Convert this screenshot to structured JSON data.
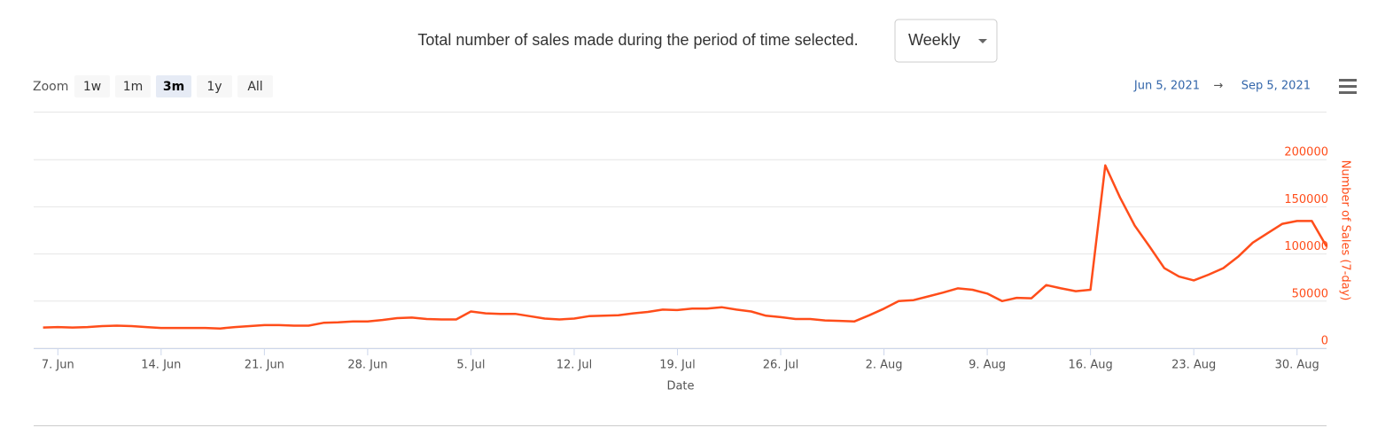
{
  "header": {
    "text": "Total number of sales made during the period of time selected.",
    "select": "Weekly"
  },
  "zoom": {
    "label": "Zoom",
    "buttons": [
      "1w",
      "1m",
      "3m",
      "1y",
      "All"
    ],
    "selected": "3m"
  },
  "range": {
    "from": "Jun 5, 2021",
    "arrow": "→",
    "to": "Sep 5, 2021"
  },
  "chart_data": {
    "type": "line",
    "x_label": "Date",
    "y_label": "Number of Sales (7-day)",
    "xlim": [
      "2021-06-05",
      "2021-09-01"
    ],
    "xticks": [
      {
        "value": "2021-06-07",
        "label": "7. Jun"
      },
      {
        "value": "2021-06-14",
        "label": "14. Jun"
      },
      {
        "value": "2021-06-21",
        "label": "21. Jun"
      },
      {
        "value": "2021-06-28",
        "label": "28. Jun"
      },
      {
        "value": "2021-07-05",
        "label": "5. Jul"
      },
      {
        "value": "2021-07-12",
        "label": "12. Jul"
      },
      {
        "value": "2021-07-19",
        "label": "19. Jul"
      },
      {
        "value": "2021-07-26",
        "label": "26. Jul"
      },
      {
        "value": "2021-08-02",
        "label": "2. Aug"
      },
      {
        "value": "2021-08-09",
        "label": "9. Aug"
      },
      {
        "value": "2021-08-16",
        "label": "16. Aug"
      },
      {
        "value": "2021-08-23",
        "label": "23. Aug"
      },
      {
        "value": "2021-08-30",
        "label": "30. Aug"
      }
    ],
    "ylim": [
      0,
      250000
    ],
    "yticks": [
      0,
      50000,
      100000,
      150000,
      200000
    ],
    "grid": true,
    "y_axis_side": "right",
    "x": [
      "2021-06-06",
      "2021-06-07",
      "2021-06-08",
      "2021-06-09",
      "2021-06-10",
      "2021-06-11",
      "2021-06-12",
      "2021-06-13",
      "2021-06-14",
      "2021-06-15",
      "2021-06-16",
      "2021-06-17",
      "2021-06-18",
      "2021-06-19",
      "2021-06-20",
      "2021-06-21",
      "2021-06-22",
      "2021-06-23",
      "2021-06-24",
      "2021-06-25",
      "2021-06-26",
      "2021-06-27",
      "2021-06-28",
      "2021-06-29",
      "2021-06-30",
      "2021-07-01",
      "2021-07-02",
      "2021-07-03",
      "2021-07-04",
      "2021-07-05",
      "2021-07-06",
      "2021-07-07",
      "2021-07-08",
      "2021-07-09",
      "2021-07-10",
      "2021-07-11",
      "2021-07-12",
      "2021-07-13",
      "2021-07-14",
      "2021-07-15",
      "2021-07-16",
      "2021-07-17",
      "2021-07-18",
      "2021-07-19",
      "2021-07-20",
      "2021-07-21",
      "2021-07-22",
      "2021-07-23",
      "2021-07-24",
      "2021-07-25",
      "2021-07-26",
      "2021-07-27",
      "2021-07-28",
      "2021-07-29",
      "2021-07-30",
      "2021-07-31",
      "2021-08-01",
      "2021-08-02",
      "2021-08-03",
      "2021-08-04",
      "2021-08-05",
      "2021-08-06",
      "2021-08-07",
      "2021-08-08",
      "2021-08-09",
      "2021-08-10",
      "2021-08-11",
      "2021-08-12",
      "2021-08-13",
      "2021-08-14",
      "2021-08-15",
      "2021-08-16",
      "2021-08-17",
      "2021-08-18",
      "2021-08-19",
      "2021-08-20",
      "2021-08-21",
      "2021-08-22",
      "2021-08-23",
      "2021-08-24",
      "2021-08-25",
      "2021-08-26",
      "2021-08-27",
      "2021-08-28",
      "2021-08-29",
      "2021-08-30",
      "2021-08-31",
      "2021-09-01"
    ],
    "series": [
      {
        "name": "Number of Sales (7-day)",
        "color": "#ff4d1a",
        "values": [
          22000,
          22500,
          22000,
          22500,
          23500,
          24000,
          23500,
          22500,
          21500,
          21500,
          21500,
          21500,
          21000,
          22500,
          23500,
          24500,
          24500,
          24000,
          24000,
          27000,
          27500,
          28500,
          28500,
          30000,
          32000,
          32500,
          31000,
          30500,
          30500,
          39000,
          37000,
          36500,
          36500,
          34000,
          31500,
          30500,
          31500,
          34000,
          34500,
          35000,
          37000,
          38500,
          41000,
          40500,
          42000,
          42000,
          43500,
          41000,
          39000,
          34500,
          33000,
          31000,
          31000,
          29500,
          29000,
          28500,
          35000,
          42000,
          50000,
          51000,
          55000,
          59000,
          63500,
          62000,
          58000,
          50000,
          53500,
          53000,
          67000,
          63500,
          60500,
          62000,
          194000,
          160000,
          130000,
          108000,
          85000,
          76000,
          72000,
          78000,
          85000,
          97000,
          112000,
          122000,
          132000,
          135000,
          135000,
          108000
        ]
      }
    ]
  }
}
